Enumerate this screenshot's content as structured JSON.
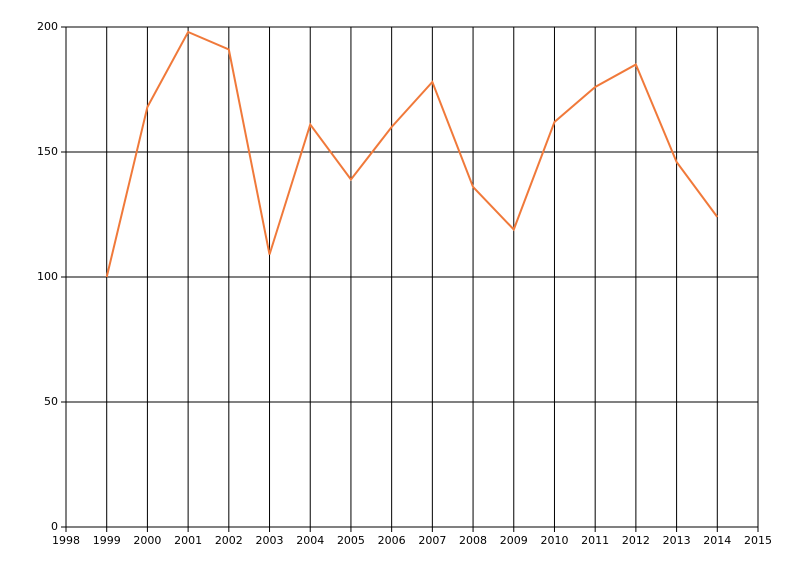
{
  "chart_data": {
    "type": "line",
    "x": [
      1999,
      2000,
      2001,
      2002,
      2003,
      2004,
      2005,
      2006,
      2007,
      2008,
      2009,
      2010,
      2011,
      2012,
      2013,
      2014
    ],
    "series": [
      {
        "color": "#f0793a",
        "values": [
          100,
          168,
          198,
          191,
          109,
          161,
          139,
          160,
          178,
          136,
          119,
          162,
          176,
          185,
          146,
          124
        ]
      }
    ],
    "xlim": [
      1998,
      2015
    ],
    "xticks": [
      1998,
      1999,
      2000,
      2001,
      2002,
      2003,
      2004,
      2005,
      2006,
      2007,
      2008,
      2009,
      2010,
      2011,
      2012,
      2013,
      2014,
      2015
    ],
    "ylim": [
      0,
      200
    ],
    "yticks": [
      0,
      50,
      100,
      150,
      200
    ],
    "grid": true
  }
}
